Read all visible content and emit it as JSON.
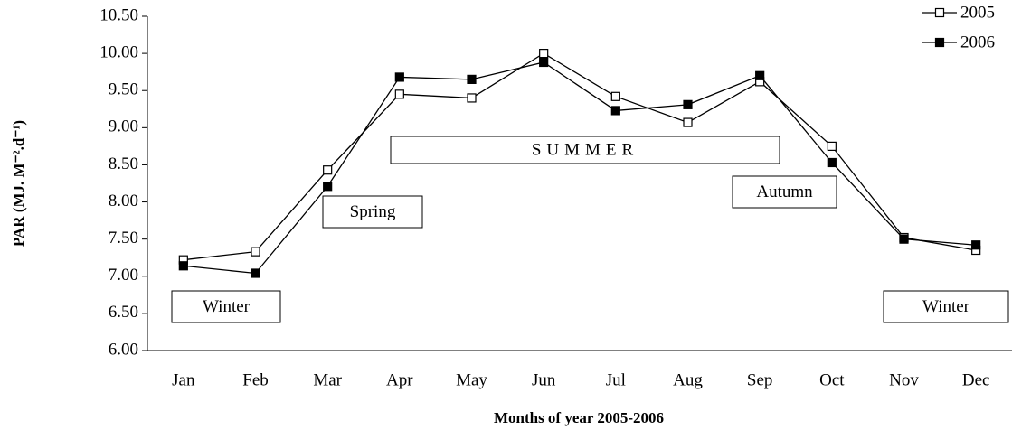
{
  "chart_data": {
    "type": "line",
    "y_label": "PAR (MJ. M⁻².d⁻¹)",
    "x_label": "Months of year 2005-2006",
    "categories": [
      "Jan",
      "Feb",
      "Mar",
      "Apr",
      "May",
      "Jun",
      "Jul",
      "Aug",
      "Sep",
      "Oct",
      "Nov",
      "Dec"
    ],
    "series": [
      {
        "name": "2005",
        "color": "#000000",
        "marker": "open-square",
        "values": [
          7.22,
          7.33,
          8.43,
          9.45,
          9.4,
          10.0,
          9.42,
          9.07,
          9.62,
          8.75,
          7.52,
          7.35
        ]
      },
      {
        "name": "2006",
        "color": "#000000",
        "marker": "filled-square",
        "values": [
          7.14,
          7.04,
          8.21,
          9.68,
          9.65,
          9.88,
          9.23,
          9.31,
          9.7,
          8.53,
          7.5,
          7.42
        ]
      }
    ],
    "ylim": [
      6.0,
      10.5
    ],
    "yticks": [
      {
        "value": 6.0,
        "label": "6.00"
      },
      {
        "value": 6.5,
        "label": "6.50"
      },
      {
        "value": 7.0,
        "label": "7.00"
      },
      {
        "value": 7.5,
        "label": "7.50"
      },
      {
        "value": 8.0,
        "label": "8.00"
      },
      {
        "value": 8.5,
        "label": "8.50"
      },
      {
        "value": 9.0,
        "label": "9.00"
      },
      {
        "value": 9.5,
        "label": "9.50"
      },
      {
        "value": 10.0,
        "label": "10.00"
      },
      {
        "value": 10.5,
        "label": "10.50"
      }
    ],
    "grid": false,
    "legend": "top-right",
    "annotations": [
      "Winter",
      "Spring",
      "SUMMER",
      "Autumn",
      "Winter"
    ]
  }
}
